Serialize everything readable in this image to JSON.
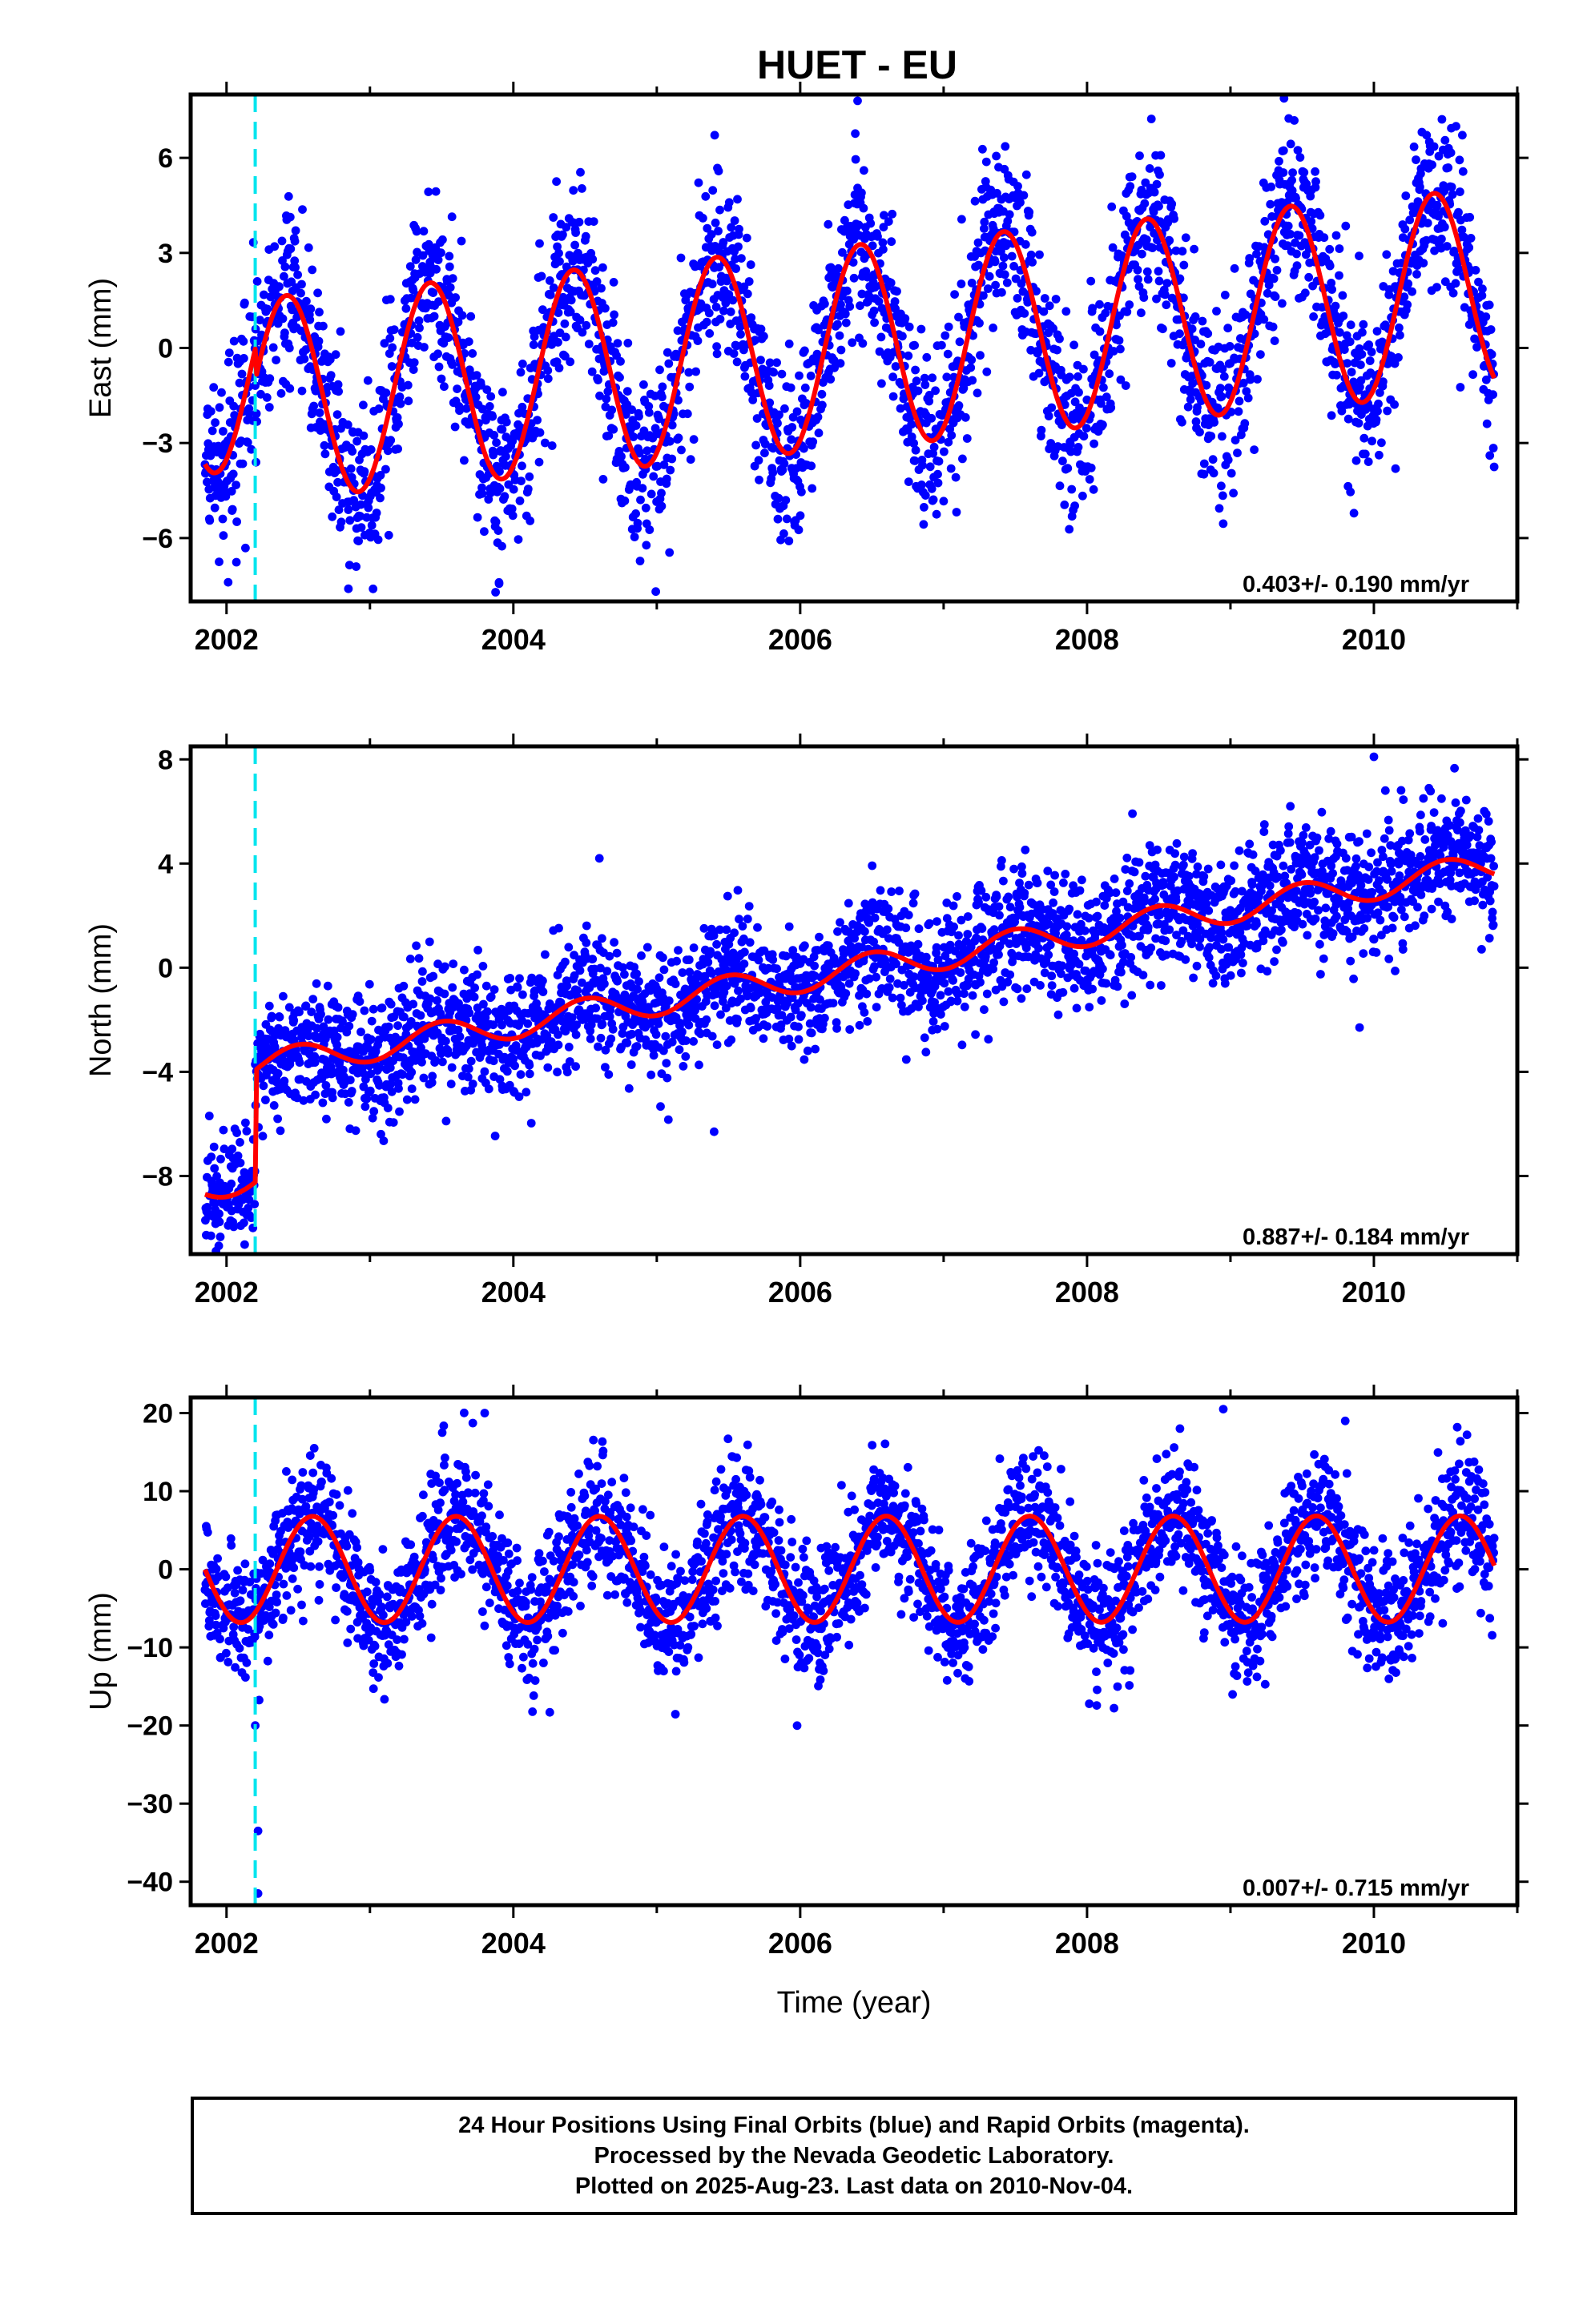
{
  "title": "HUET - EU",
  "colors": {
    "points": "#0000ff",
    "model": "#ff0000",
    "offset_line": "#00e5ee",
    "axis": "#000000"
  },
  "chart_data": [
    {
      "type": "scatter",
      "name": "east",
      "ylabel": "East (mm)",
      "xlim": [
        2001.75,
        2011.0
      ],
      "ylim": [
        -8.0,
        8.0
      ],
      "yticks": [
        -6,
        -3,
        0,
        3,
        6
      ],
      "xticks": [
        2002,
        2004,
        2006,
        2008,
        2010
      ],
      "data_range": [
        2001.85,
        2010.84
      ],
      "offset_epoch": 2002.2,
      "rate_label": "0.403+/- 0.190 mm/yr",
      "model": {
        "rate": 0.403,
        "annual_amplitude": 3.2,
        "annual_peak": 0.42,
        "offset": -1.0,
        "intercept_2006": -0.1
      },
      "scatter_sigma": 1.4,
      "outliers": [
        [
          2006.4,
          7.8
        ],
        [
          2002.85,
          -7.6
        ],
        [
          2003.9,
          -7.4
        ]
      ]
    },
    {
      "type": "scatter",
      "name": "north",
      "ylabel": "North (mm)",
      "xlim": [
        2001.75,
        2011.0
      ],
      "ylim": [
        -11.0,
        8.5
      ],
      "yticks": [
        -8,
        -4,
        0,
        4,
        8
      ],
      "xticks": [
        2002,
        2004,
        2006,
        2008,
        2010
      ],
      "data_range": [
        2001.85,
        2010.84
      ],
      "offset_epoch": 2002.2,
      "rate_label": "0.887+/- 0.184 mm/yr",
      "model": {
        "rate": 0.887,
        "annual_amplitude": 0.55,
        "annual_peak": 0.5,
        "offset": 4.3,
        "intercept_2006": -0.4
      },
      "scatter_sigma": 1.2,
      "outliers": [
        [
          2010.0,
          8.1
        ],
        [
          2004.6,
          4.2
        ],
        [
          2005.4,
          -6.3
        ],
        [
          2009.9,
          -2.3
        ]
      ]
    },
    {
      "type": "scatter",
      "name": "up",
      "ylabel": "Up (mm)",
      "xlabel": "Time (year)",
      "xlim": [
        2001.75,
        2011.0
      ],
      "ylim": [
        -43.0,
        22.0
      ],
      "yticks": [
        -40,
        -30,
        -20,
        -10,
        0,
        10,
        20
      ],
      "xticks": [
        2002,
        2004,
        2006,
        2008,
        2010
      ],
      "data_range": [
        2001.85,
        2010.84
      ],
      "offset_epoch": 2002.2,
      "rate_label": "0.007+/- 0.715 mm/yr",
      "model": {
        "rate": 0.007,
        "annual_amplitude": 6.8,
        "annual_peak": 0.6,
        "offset": 0.0,
        "intercept_2006": 0.0
      },
      "scatter_sigma": 4.2,
      "outliers": [
        [
          2002.22,
          -41.5
        ],
        [
          2002.22,
          -33.5
        ],
        [
          2002.2,
          -20
        ],
        [
          2003.8,
          20
        ],
        [
          2008.95,
          20.5
        ],
        [
          2009.8,
          19
        ]
      ]
    }
  ],
  "footer": {
    "line1": "24 Hour Positions Using Final Orbits (blue) and Rapid Orbits (magenta).",
    "line2": "Processed by the Nevada Geodetic Laboratory.",
    "line3": "Plotted on 2025-Aug-23. Last data on 2010-Nov-04."
  }
}
